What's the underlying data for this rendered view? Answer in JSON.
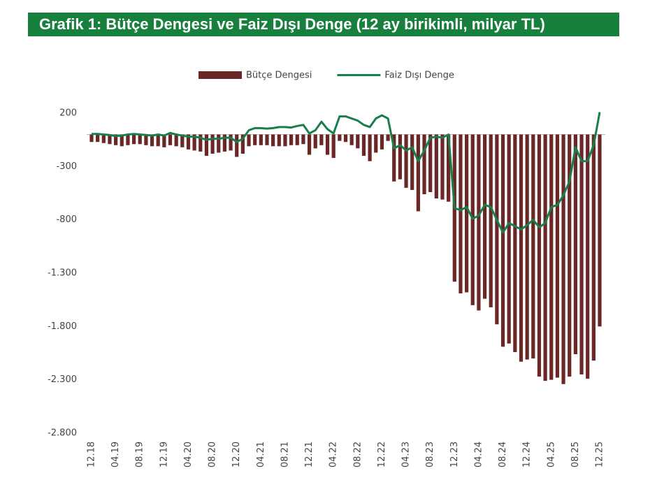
{
  "chart_data": {
    "type": "bar-line",
    "title": "Grafik 1: Bütçe Dengesi ve Faiz Dışı Denge (12 ay birikimli, milyar TL)",
    "categories": [
      "12.18",
      null,
      null,
      null,
      "04.19",
      null,
      null,
      null,
      "08.19",
      null,
      null,
      null,
      "12.19",
      null,
      null,
      null,
      "04.20",
      null,
      null,
      null,
      "08.20",
      null,
      null,
      null,
      "12.20",
      null,
      null,
      null,
      "04.21",
      null,
      null,
      null,
      "08.21",
      null,
      null,
      null,
      "12.21",
      null,
      null,
      null,
      "04.22",
      null,
      null,
      null,
      "08.22",
      null,
      null,
      null,
      "12.22",
      null,
      null,
      null,
      "04.23",
      null,
      null,
      null,
      "08.23",
      null,
      null,
      null,
      "12.23",
      null,
      null,
      null,
      "04.24",
      null,
      null,
      null,
      "08.24",
      null,
      null,
      null,
      "12.24",
      null,
      null,
      null,
      "04.25",
      null,
      null,
      null,
      "08.25",
      null,
      null,
      null,
      "12.25"
    ],
    "series": [
      {
        "name": "Bütçe Dengesi",
        "type": "bar",
        "color": "#6b2626",
        "values": [
          -70,
          -70,
          -80,
          -90,
          -100,
          -110,
          -100,
          -90,
          -90,
          -100,
          -110,
          -110,
          -120,
          -100,
          -110,
          -120,
          -140,
          -150,
          -160,
          -200,
          -180,
          -170,
          -160,
          -150,
          -210,
          -180,
          -110,
          -100,
          -100,
          -100,
          -110,
          -110,
          -110,
          -100,
          -100,
          -90,
          -190,
          -130,
          -100,
          -190,
          -220,
          -60,
          -70,
          -100,
          -130,
          -200,
          -250,
          -170,
          -140,
          -60,
          -440,
          -420,
          -500,
          -520,
          -720,
          -560,
          -540,
          -600,
          -610,
          -630,
          -1380,
          -1490,
          -1480,
          -1600,
          -1650,
          -1540,
          -1620,
          -1780,
          -1990,
          -1960,
          -2040,
          -2130,
          -2110,
          -2100,
          -2270,
          -2310,
          -2300,
          -2280,
          -2340,
          -2270,
          -2060,
          -2250,
          -2290,
          -2120,
          -1800
        ]
      },
      {
        "name": "Faiz Dışı Denge",
        "type": "line",
        "color": "#17804a",
        "values": [
          5,
          5,
          0,
          -5,
          -15,
          -10,
          0,
          5,
          0,
          -5,
          -10,
          0,
          -10,
          15,
          0,
          -10,
          -20,
          -20,
          -30,
          -50,
          -40,
          -40,
          -30,
          -30,
          -70,
          -40,
          40,
          60,
          60,
          55,
          60,
          70,
          70,
          65,
          80,
          90,
          10,
          40,
          120,
          50,
          10,
          170,
          170,
          150,
          130,
          90,
          70,
          150,
          180,
          150,
          -130,
          -100,
          -150,
          -120,
          -250,
          -150,
          -30,
          -20,
          -30,
          0,
          -690,
          -710,
          -680,
          -790,
          -760,
          -660,
          -680,
          -800,
          -920,
          -830,
          -860,
          -890,
          -850,
          -800,
          -870,
          -830,
          -680,
          -660,
          -570,
          -440,
          -120,
          -250,
          -250,
          -100,
          210
        ]
      }
    ],
    "ylim": [
      -2800,
      200
    ],
    "yticks": [
      200,
      -300,
      -800,
      {
        "value": -1300,
        "label": "-1.300"
      },
      {
        "value": -1800,
        "label": "-1.800"
      },
      {
        "value": -2300,
        "label": "-2.300"
      },
      {
        "value": -2800,
        "label": "-2.800"
      }
    ],
    "grid": false,
    "legend": "top"
  }
}
